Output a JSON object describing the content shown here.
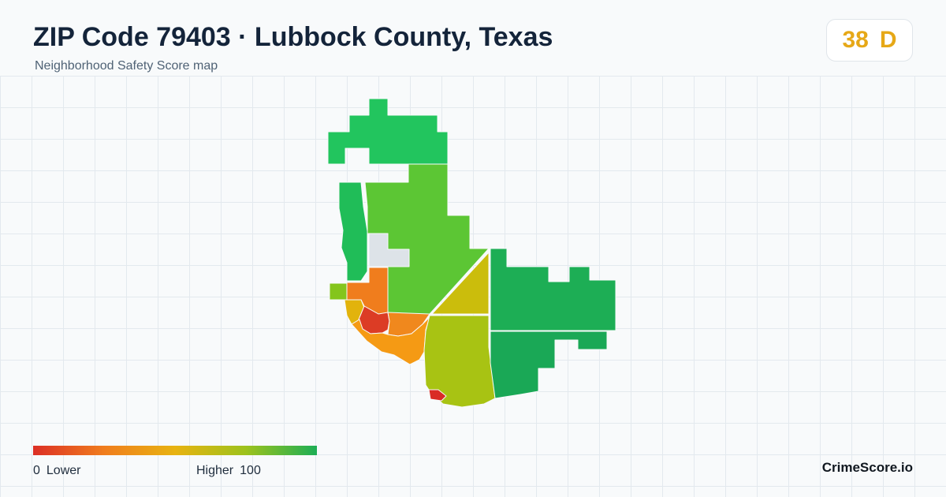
{
  "header": {
    "title": "ZIP Code 79403 · Lubbock County, Texas",
    "subtitle": "Neighborhood Safety Score map"
  },
  "score": {
    "value": "38",
    "grade": "D",
    "color": "#e6a817"
  },
  "legend": {
    "min_value": "0",
    "min_label": "Lower",
    "max_label": "Higher",
    "max_value": "100",
    "colors": [
      "#dc2f25",
      "#f07d1d",
      "#e8b311",
      "#9dc21c",
      "#1dae55"
    ]
  },
  "brand": {
    "name": "CrimeScore.io"
  },
  "map": {
    "no_data_color": "#dde3e8",
    "regions": [
      {
        "id": "north-top",
        "score": 88,
        "color": "#22c55e"
      },
      {
        "id": "northwest-strip",
        "score": 86,
        "color": "#20bd58"
      },
      {
        "id": "central-north",
        "score": 75,
        "color": "#5cc634"
      },
      {
        "id": "no-data-block",
        "score": null,
        "color": "#dde3e8"
      },
      {
        "id": "west-small",
        "score": 72,
        "color": "#84c51c"
      },
      {
        "id": "west-orange",
        "score": 22,
        "color": "#f07d1d"
      },
      {
        "id": "west-yellow",
        "score": 45,
        "color": "#e2b30c"
      },
      {
        "id": "central-red",
        "score": 8,
        "color": "#dc3c25"
      },
      {
        "id": "central-orange",
        "score": 25,
        "color": "#f0881d"
      },
      {
        "id": "southwest-orange",
        "score": 32,
        "color": "#f59a14"
      },
      {
        "id": "east-yellow",
        "score": 50,
        "color": "#cbbd0c"
      },
      {
        "id": "east-green",
        "score": 92,
        "color": "#1dae55"
      },
      {
        "id": "south-yellowgreen",
        "score": 60,
        "color": "#a8c313"
      },
      {
        "id": "southeast-green",
        "score": 90,
        "color": "#1aa856"
      },
      {
        "id": "south-red",
        "score": 5,
        "color": "#d92b25"
      }
    ]
  }
}
